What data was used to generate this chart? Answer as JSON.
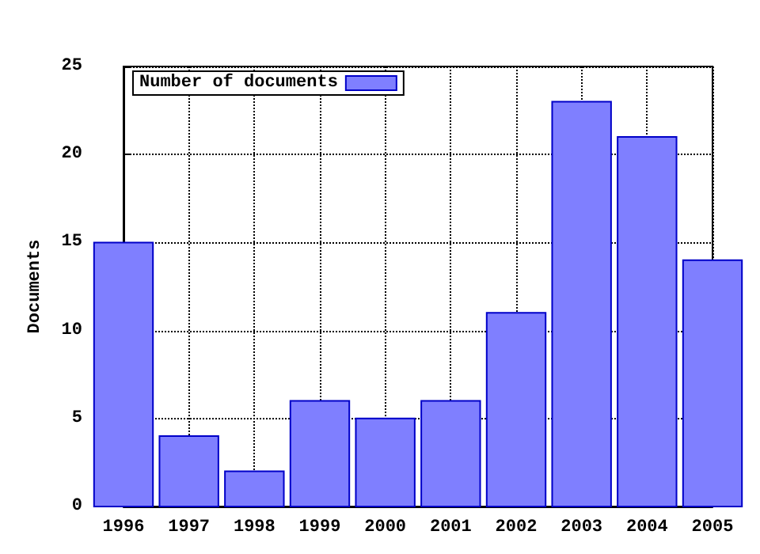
{
  "chart_data": {
    "type": "bar",
    "ylabel": "Documents",
    "x": [
      1996,
      1997,
      1998,
      1999,
      2000,
      2001,
      2002,
      2003,
      2004,
      2005
    ],
    "series": [
      {
        "name": "Number of documents",
        "color": "#7f7fff",
        "values": [
          15,
          4,
          2,
          6,
          5,
          6,
          11,
          23,
          21,
          14
        ]
      }
    ],
    "xlim": [
      1996,
      2005
    ],
    "xticks": [
      1996,
      1997,
      1998,
      1999,
      2000,
      2001,
      2002,
      2003,
      2004,
      2005
    ],
    "ylim": [
      0,
      25
    ],
    "yticks": [
      0,
      5,
      10,
      15,
      20,
      25
    ],
    "grid": true,
    "legend": "top left"
  }
}
